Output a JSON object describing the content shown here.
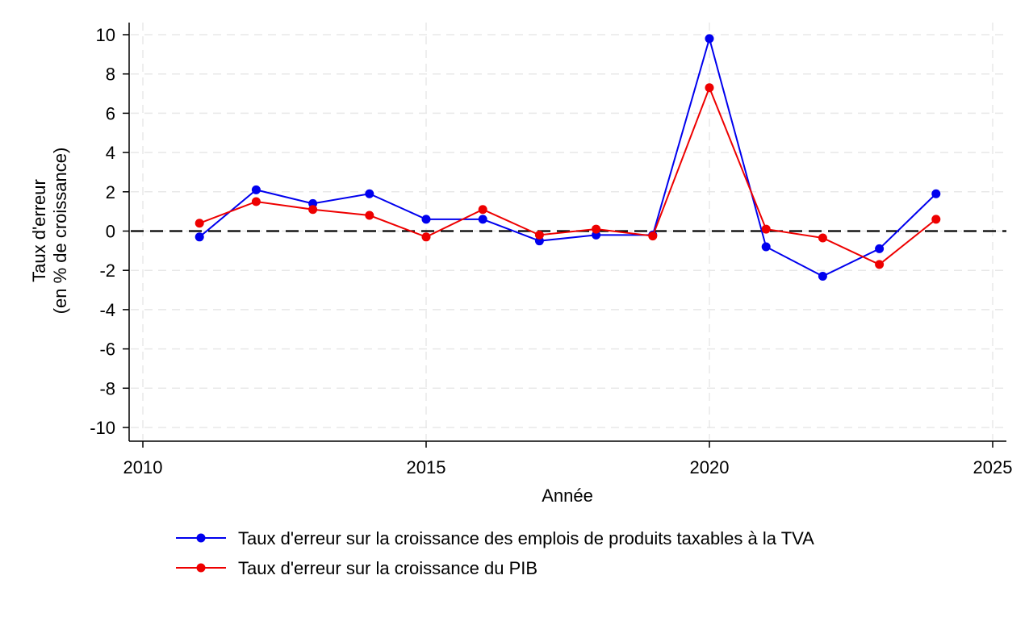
{
  "chart_data": {
    "type": "line",
    "xlabel": "Année",
    "ylabel": [
      "Taux d'erreur",
      "(en % de croissance)"
    ],
    "xlim": [
      2010,
      2025
    ],
    "ylim": [
      -10,
      10
    ],
    "x_ticks": [
      2010,
      2015,
      2020,
      2025
    ],
    "y_ticks": [
      -10,
      -8,
      -6,
      -4,
      -2,
      0,
      2,
      4,
      6,
      8,
      10
    ],
    "grid": true,
    "reference_line": {
      "y": 0,
      "style": "dashed",
      "color": "#000000"
    },
    "legend_position": "bottom",
    "x": [
      2011,
      2012,
      2013,
      2014,
      2015,
      2016,
      2017,
      2018,
      2019,
      2020,
      2021,
      2022,
      2023,
      2024
    ],
    "series": [
      {
        "name": "Taux d'erreur sur la croissance des emplois de produits taxables à la TVA",
        "color": "#0000ee",
        "values": [
          -0.3,
          2.1,
          1.4,
          1.9,
          0.6,
          0.6,
          -0.5,
          -0.2,
          -0.2,
          9.8,
          -0.8,
          -2.3,
          -0.9,
          1.9
        ]
      },
      {
        "name": "Taux d'erreur sur la croissance du PIB",
        "color": "#ee0000",
        "values": [
          0.4,
          1.5,
          1.1,
          0.8,
          -0.3,
          1.1,
          -0.2,
          0.1,
          -0.25,
          7.3,
          0.1,
          -0.35,
          -1.7,
          0.6
        ]
      }
    ]
  }
}
